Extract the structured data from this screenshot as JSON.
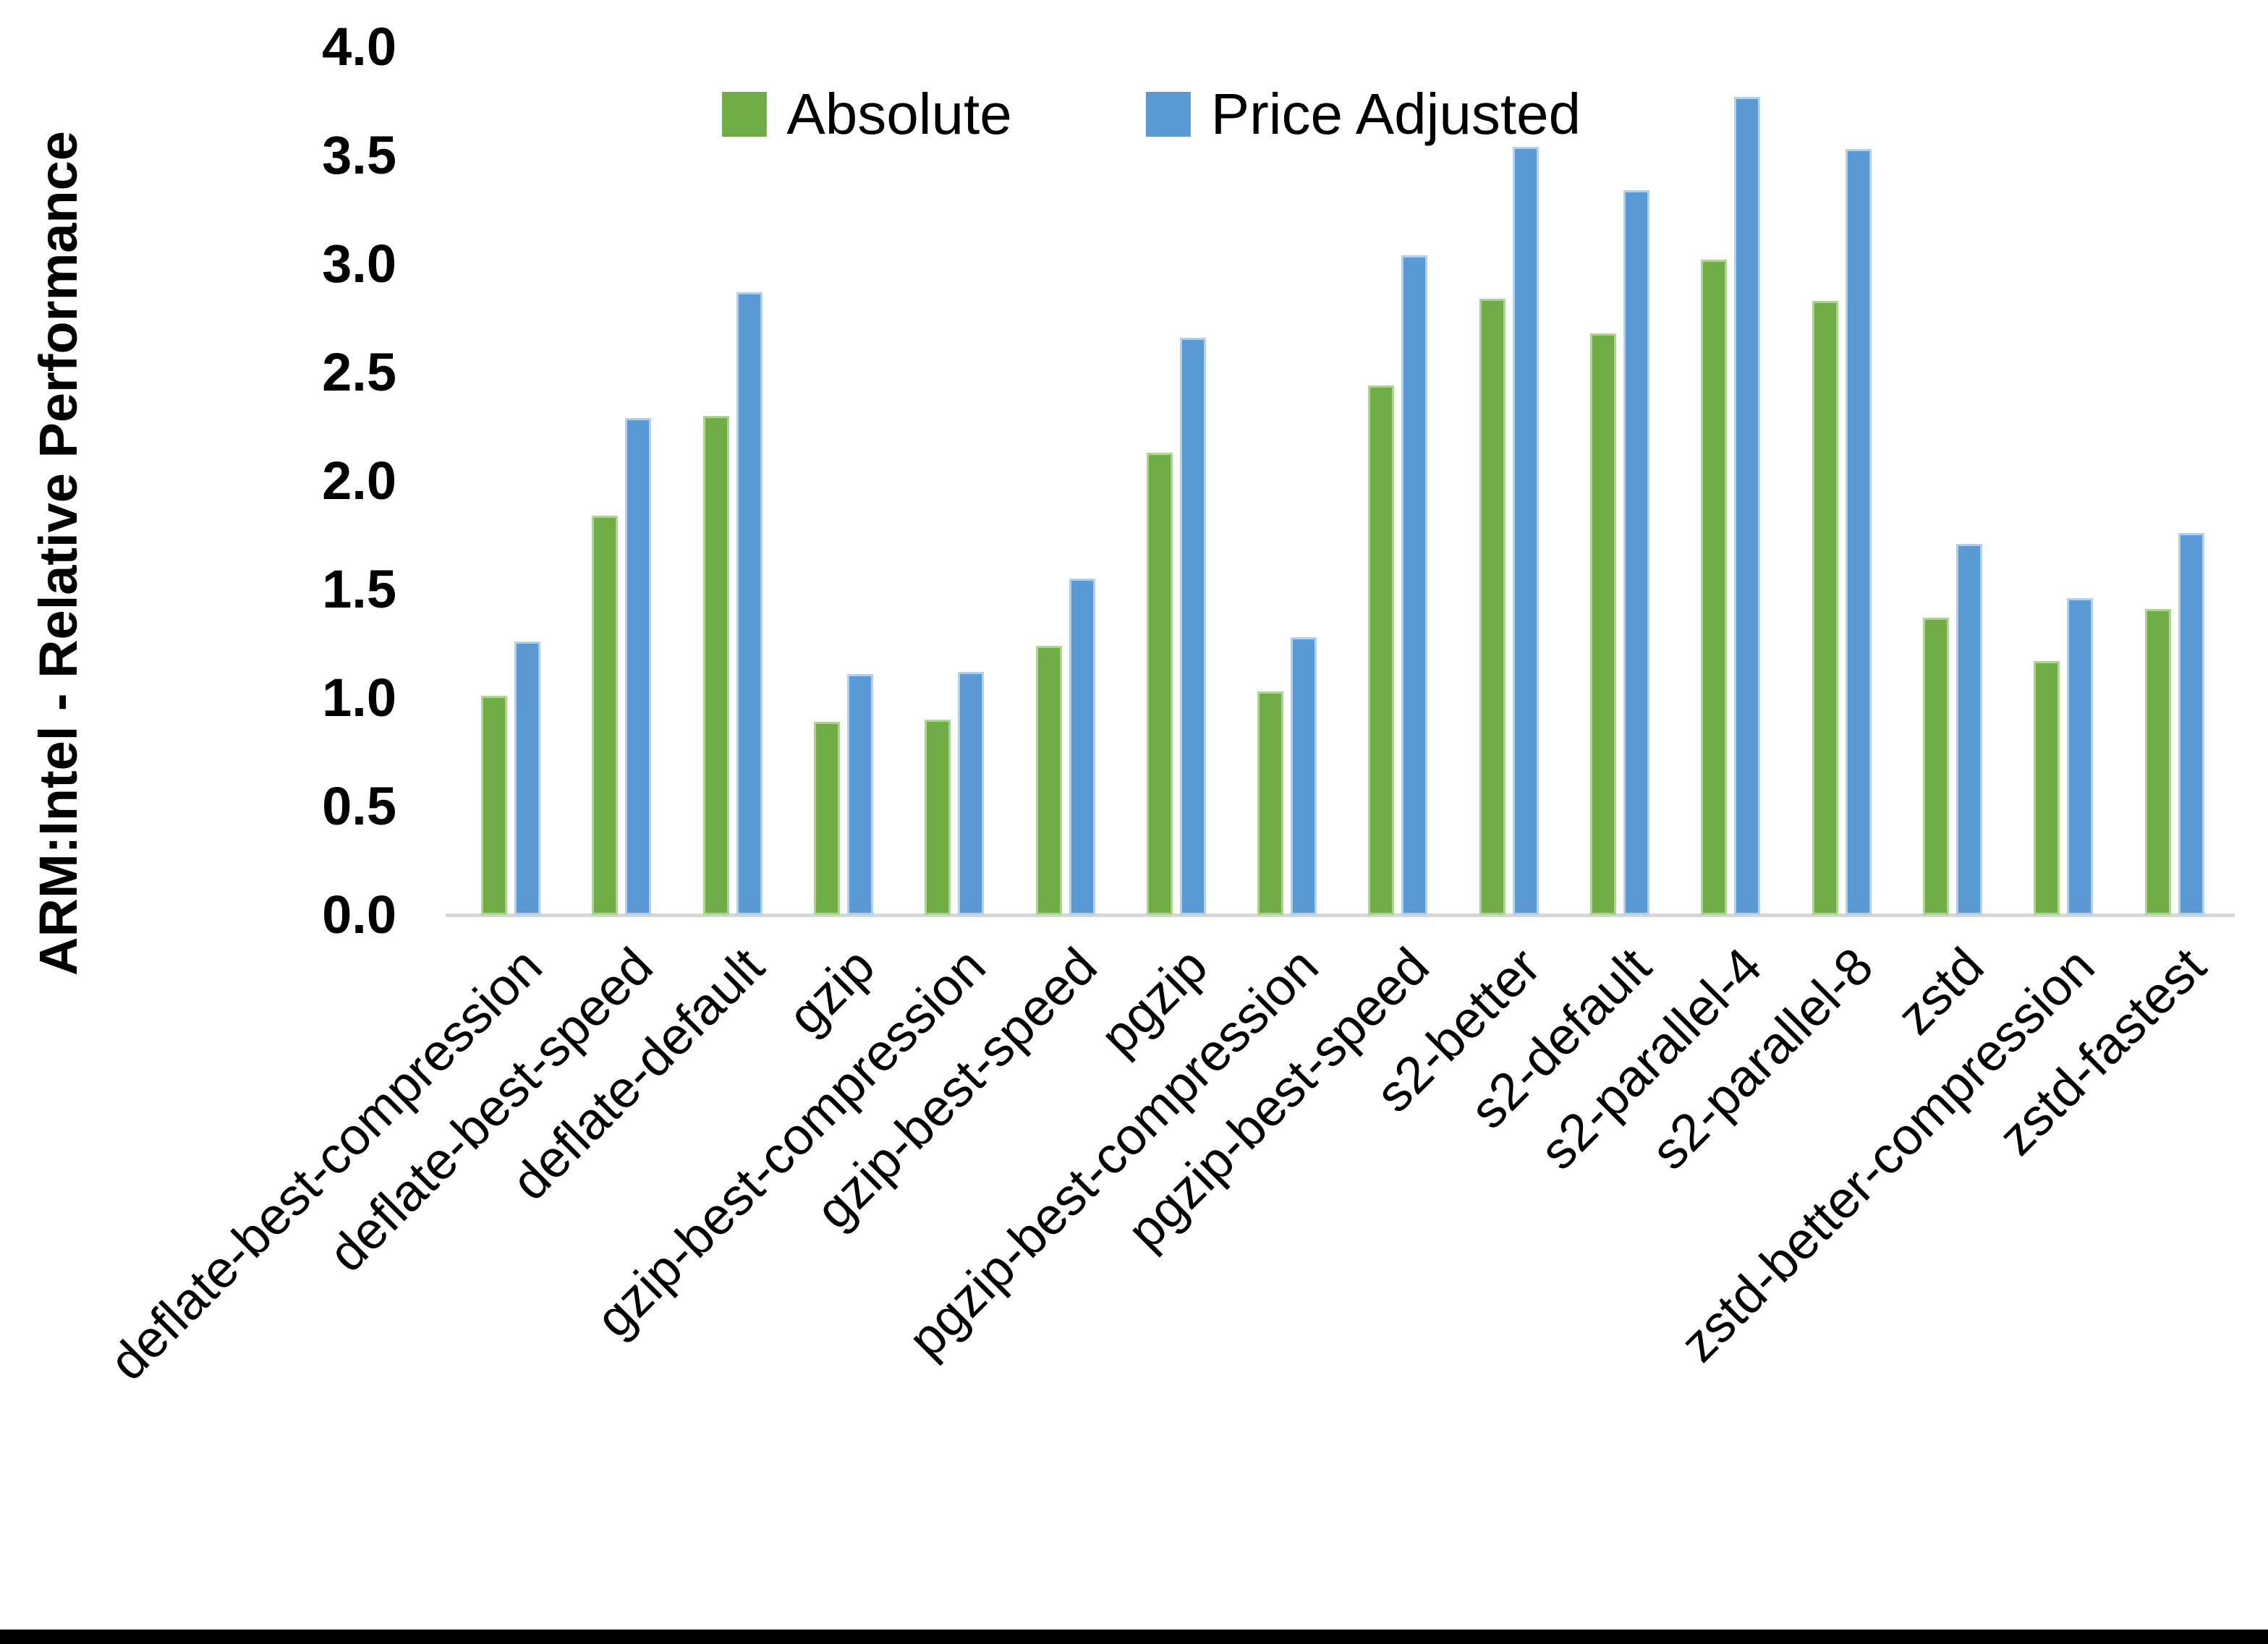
{
  "chart_data": {
    "type": "bar",
    "title": "",
    "ylabel": "ARM:Intel - Relative Performance",
    "xlabel": "",
    "ylim": [
      0.0,
      4.0
    ],
    "ytick_step": 0.5,
    "yticks": [
      "4.0",
      "3.5",
      "3.0",
      "2.5",
      "2.0",
      "1.5",
      "1.0",
      "0.5",
      "0.0"
    ],
    "grid": false,
    "legend_position": "top-center",
    "axis_line_color": "#d6d6d6",
    "categories": [
      "deflate-best-compression",
      "deflate-best-speed",
      "deflate-default",
      "gzip",
      "gzip-best-compression",
      "gzip-best-speed",
      "pgzip",
      "pgzip-best-compression",
      "pgzip-best-speed",
      "s2-better",
      "s2-default",
      "s2-parallel-4",
      "s2-parallel-8",
      "zstd",
      "zstd-better-compression",
      "zstd-fastest"
    ],
    "series": [
      {
        "name": "Absolute",
        "color": "#70AD47",
        "values": [
          1.01,
          1.84,
          2.3,
          0.89,
          0.9,
          1.24,
          2.13,
          1.03,
          2.44,
          2.84,
          2.68,
          3.02,
          2.83,
          1.37,
          1.17,
          1.41
        ]
      },
      {
        "name": "Price Adjusted",
        "color": "#5B9BD5",
        "values": [
          1.26,
          2.29,
          2.87,
          1.11,
          1.12,
          1.55,
          2.66,
          1.28,
          3.04,
          3.54,
          3.34,
          3.77,
          3.53,
          1.71,
          1.46,
          1.76
        ]
      }
    ]
  }
}
